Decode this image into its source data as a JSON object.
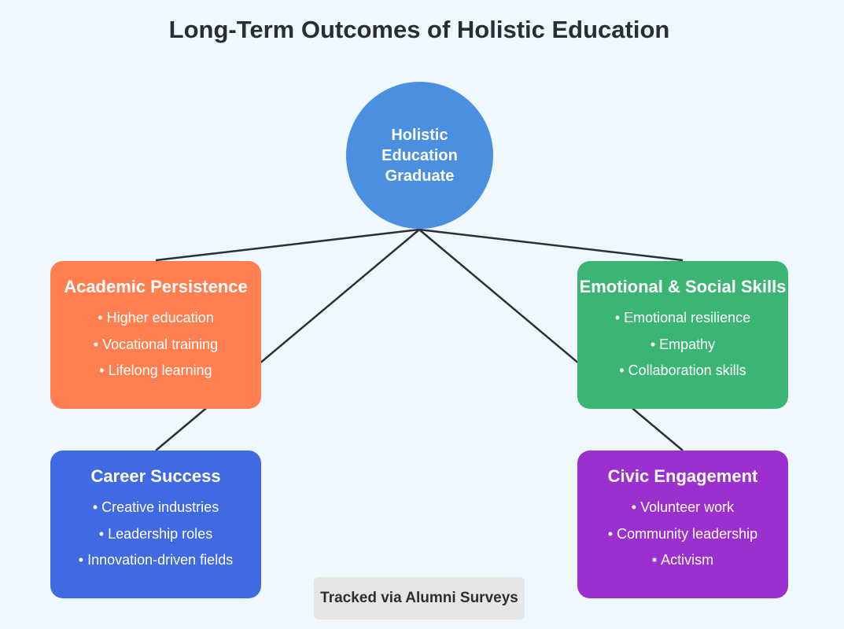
{
  "title": "Long-Term Outcomes of Holistic Education",
  "hub": {
    "lines": [
      "Holistic",
      "Education",
      "Graduate"
    ]
  },
  "cards": {
    "academic": {
      "title": "Academic Persistence",
      "items": [
        "Higher education",
        "Vocational training",
        "Lifelong learning"
      ],
      "color": "#ff7f50"
    },
    "emotional": {
      "title": "Emotional & Social Skills",
      "items": [
        "Emotional resilience",
        "Empathy",
        "Collaboration skills"
      ],
      "color": "#3bb574"
    },
    "career": {
      "title": "Career Success",
      "items": [
        "Creative industries",
        "Leadership roles",
        "Innovation-driven fields"
      ],
      "color": "#4169e1"
    },
    "civic": {
      "title": "Civic Engagement",
      "items": [
        "Volunteer work",
        "Community leadership",
        "Activism"
      ],
      "color": "#9b30cf"
    }
  },
  "footer": "Tracked via Alumni Surveys"
}
